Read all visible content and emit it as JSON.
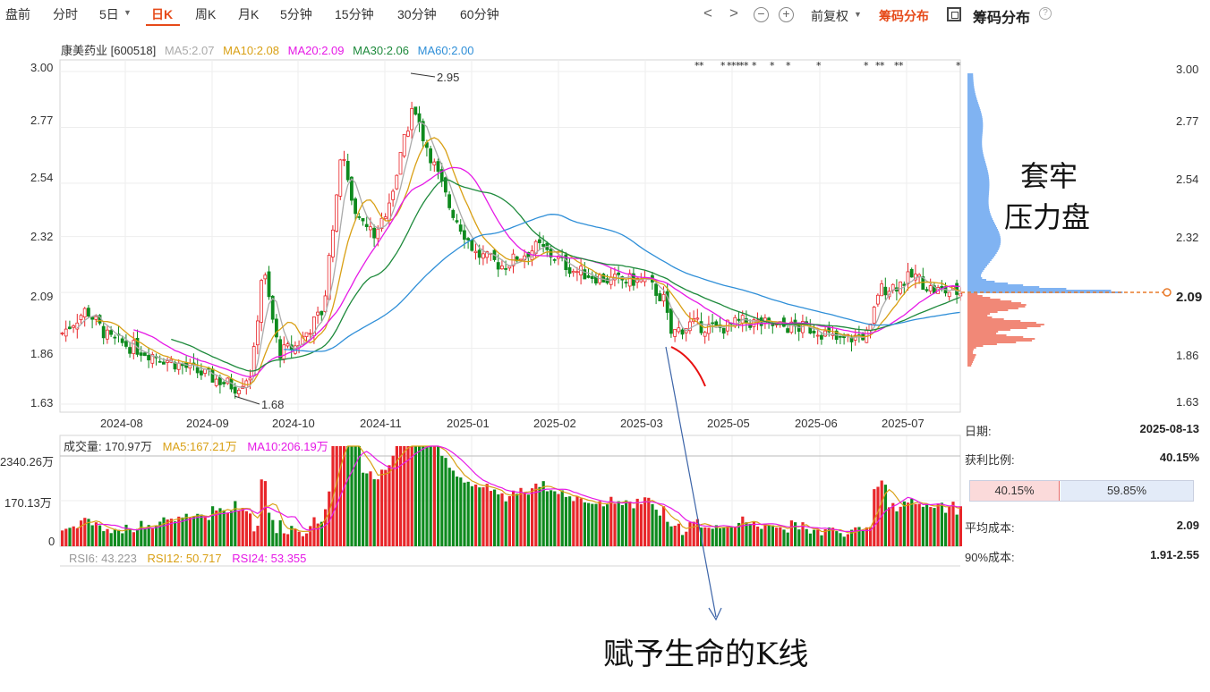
{
  "toolbar": {
    "tabs": [
      "盘前",
      "分时",
      "5日",
      "日K",
      "周K",
      "月K",
      "5分钟",
      "15分钟",
      "30分钟",
      "60分钟"
    ],
    "active_tab": "日K",
    "prev_label": "<",
    "next_label": ">",
    "zoom_out": "−",
    "zoom_in": "+",
    "adjust_label": "前复权",
    "dist_toggle_label": "筹码分布",
    "panel_title": "筹码分布",
    "help": "?"
  },
  "stock": {
    "name_code": "康美药业 [600518]",
    "ma": [
      {
        "label": "MA5:2.07",
        "color": "#aaaaaa"
      },
      {
        "label": "MA10:2.08",
        "color": "#d9a015"
      },
      {
        "label": "MA20:2.09",
        "color": "#e619e6"
      },
      {
        "label": "MA30:2.06",
        "color": "#1e8a3c"
      },
      {
        "label": "MA60:2.00",
        "color": "#2f8fd8"
      }
    ]
  },
  "price_axis": {
    "labels": [
      "3.00",
      "2.77",
      "2.54",
      "2.32",
      "2.09",
      "1.86",
      "1.63"
    ],
    "right_labels": [
      "3.00",
      "2.77",
      "2.54",
      "2.32",
      "2.09",
      "1.86",
      "1.63"
    ],
    "current_price": "2.09"
  },
  "date_axis": [
    "2024-08",
    "2024-09",
    "2024-10",
    "2024-11",
    "2025-01",
    "2025-02",
    "2025-03",
    "2025-05",
    "2025-06",
    "2025-07"
  ],
  "markers": {
    "high": "2.95",
    "low": "1.68"
  },
  "volume": {
    "legend": [
      {
        "label": "成交量: 170.97万",
        "color": "#333333"
      },
      {
        "label": "MA5:167.21万",
        "color": "#d9a015"
      },
      {
        "label": "MA10:206.19万",
        "color": "#e619e6"
      }
    ],
    "axis": [
      "2340.26万",
      "170.13万",
      "0"
    ]
  },
  "rsi": [
    {
      "label": "RSI6: 43.223",
      "color": "#999999"
    },
    {
      "label": "RSI12: 50.717",
      "color": "#d9a015"
    },
    {
      "label": "RSI24: 53.355",
      "color": "#e619e6"
    }
  ],
  "info_panel": {
    "date_label": "日期:",
    "date_value": "2025-08-13",
    "profit_label": "获利比例:",
    "profit_value": "40.15%",
    "profit_bar": "40.15%",
    "loss_bar": "59.85%",
    "profit_fraction": 0.4015,
    "avg_cost_label": "平均成本:",
    "avg_cost_value": "2.09",
    "cost90_label": "90%成本:",
    "cost90_value": "1.91-2.55"
  },
  "annotations": {
    "line1": "套牢",
    "line2": "压力盘",
    "bottom": "赋予生命的K线"
  },
  "colors": {
    "up": "#e8262a",
    "down": "#0e8a1e",
    "accent": "#e64a19",
    "chip_profit": "#ef7b68",
    "chip_loss": "#6aa6f0",
    "arrow": "#3c64a8"
  },
  "chart_data": {
    "type": "candlestick",
    "ylim": [
      1.63,
      3.0
    ],
    "close_path": [
      {
        "x": "2024-08",
        "y": 1.92
      },
      {
        "x": "2024-09",
        "y": 1.72
      },
      {
        "x": "2024-10",
        "y": 1.84
      },
      {
        "x": "2024-11",
        "y": 2.7
      },
      {
        "x": "2025-01",
        "y": 2.3
      },
      {
        "x": "2025-02",
        "y": 2.22
      },
      {
        "x": "2025-03",
        "y": 1.95
      },
      {
        "x": "2025-05",
        "y": 1.98
      },
      {
        "x": "2025-06",
        "y": 1.9
      },
      {
        "x": "2025-07",
        "y": 2.12
      }
    ]
  }
}
